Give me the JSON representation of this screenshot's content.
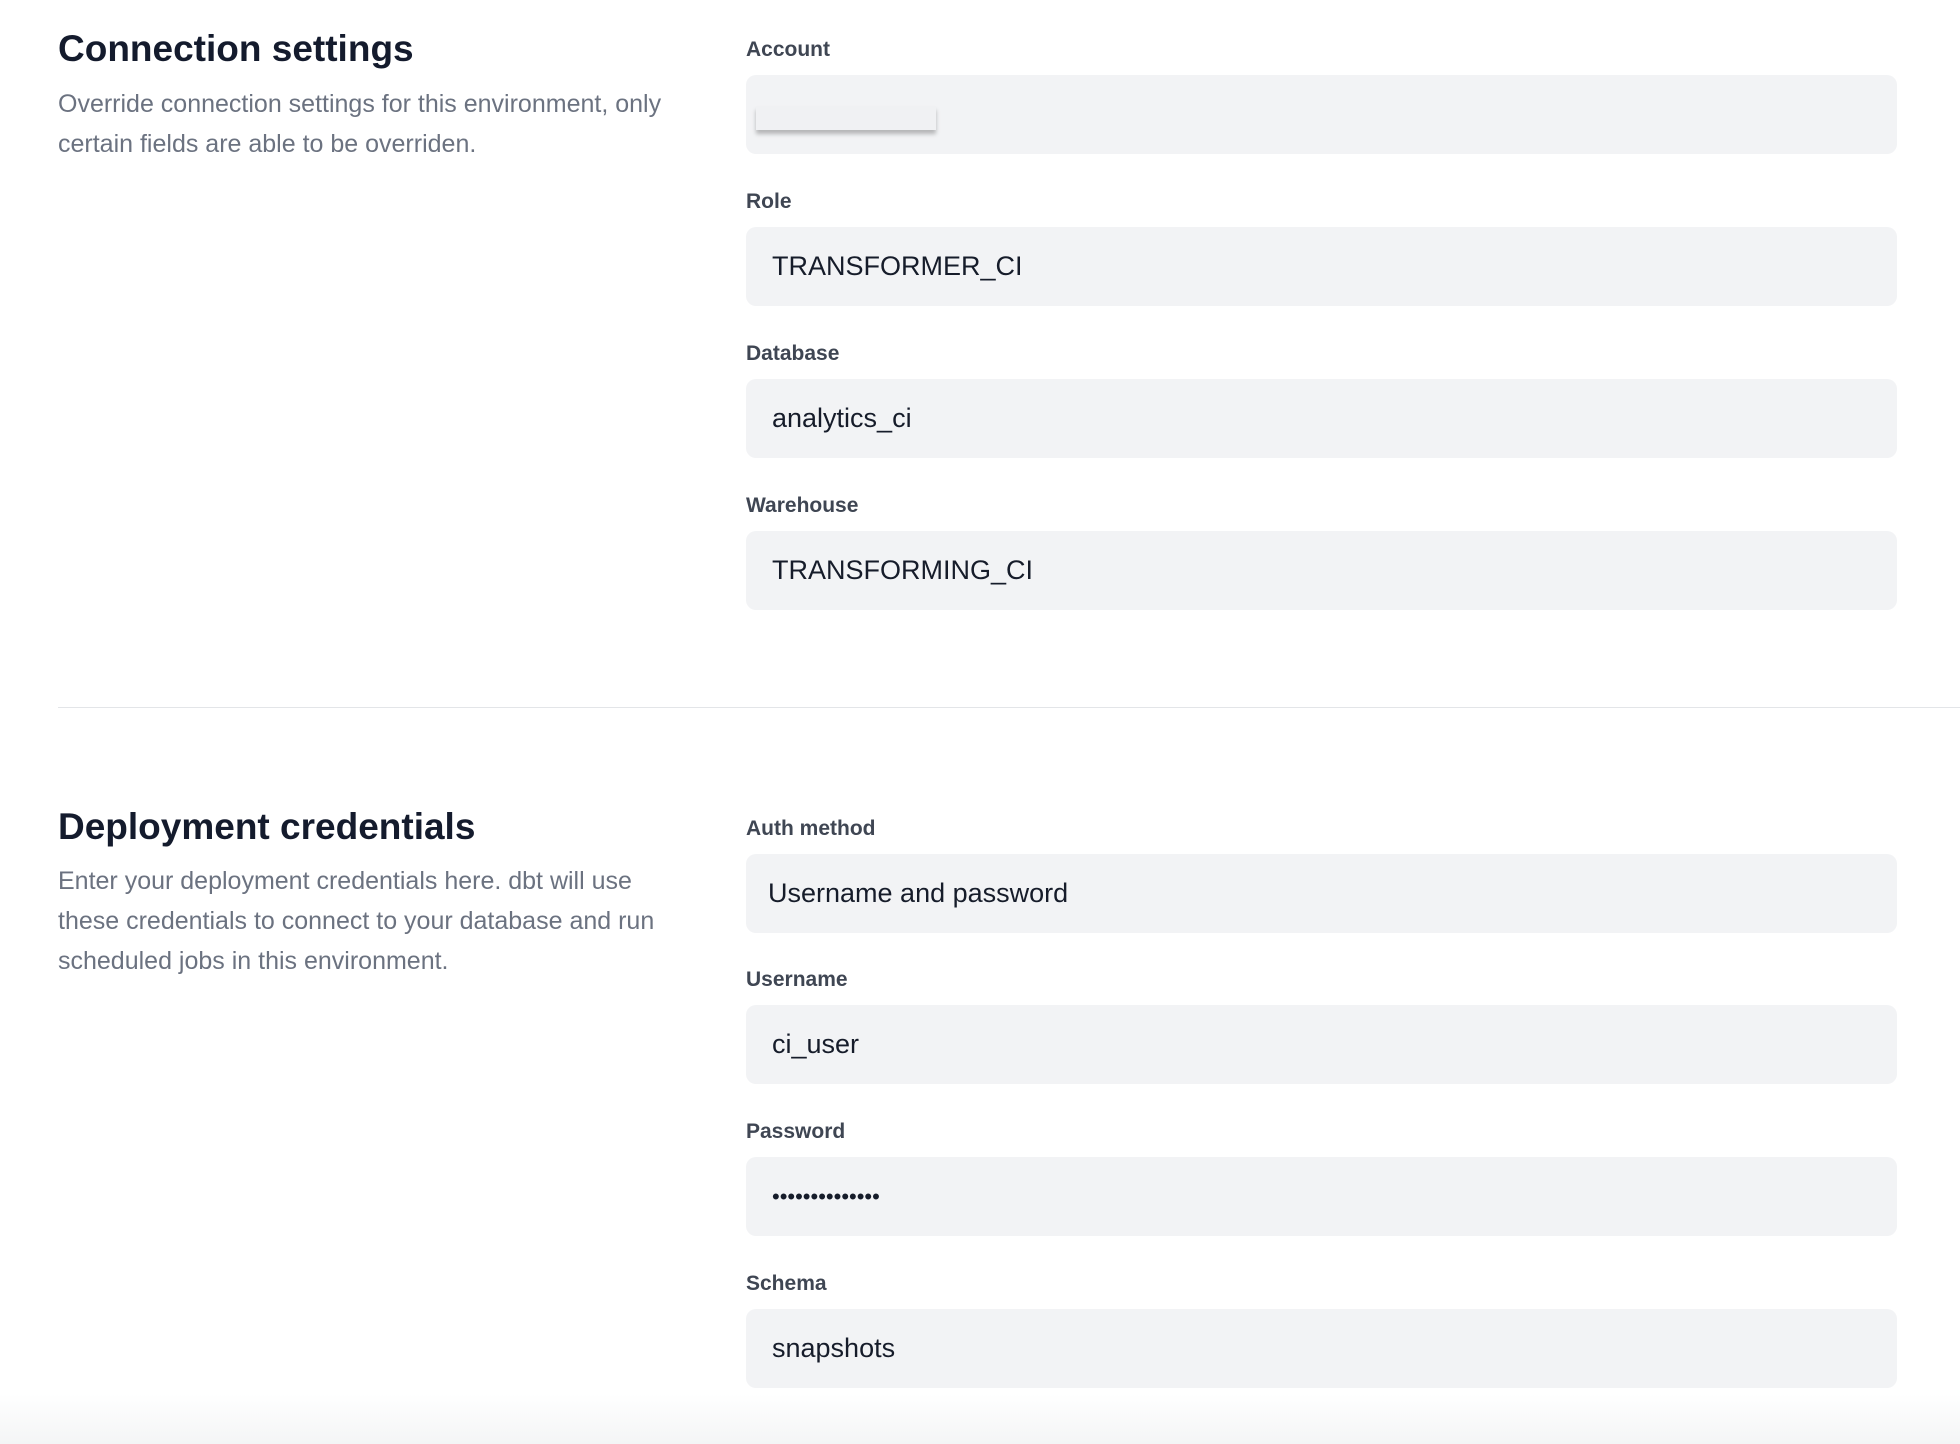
{
  "connection": {
    "title": "Connection settings",
    "description": "Override connection settings for this environment, only certain fields are able to be overriden.",
    "fields": [
      {
        "label": "Account",
        "value": ""
      },
      {
        "label": "Role",
        "value": "TRANSFORMER_CI"
      },
      {
        "label": "Database",
        "value": "analytics_ci"
      },
      {
        "label": "Warehouse",
        "value": "TRANSFORMING_CI"
      }
    ]
  },
  "credentials": {
    "title": "Deployment credentials",
    "description": "Enter your deployment credentials here. dbt will use these credentials to connect to your database and run scheduled jobs in this environment.",
    "fields": [
      {
        "label": "Auth method",
        "value": "Username and password"
      },
      {
        "label": "Username",
        "value": "ci_user"
      },
      {
        "label": "Password",
        "value": "••••••••••••••"
      },
      {
        "label": "Schema",
        "value": "snapshots"
      }
    ]
  }
}
